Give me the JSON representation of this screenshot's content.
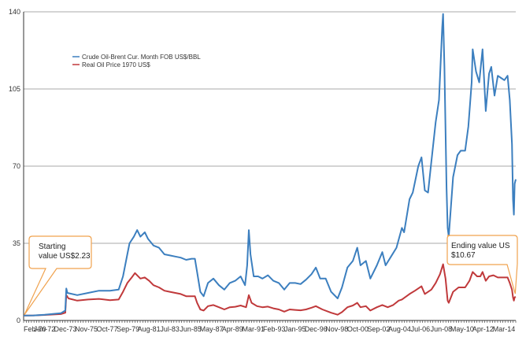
{
  "chart_data": {
    "type": "line",
    "title": "",
    "xlabel": "",
    "ylabel": "",
    "ylim": [
      0,
      140
    ],
    "yticks": [
      0,
      35,
      70,
      105,
      140
    ],
    "grid": "horizontal",
    "legend_position": "top-left",
    "x_tick_labels": [
      "Feb-70",
      "Jan-72",
      "Dec-73",
      "Nov-75",
      "Oct-77",
      "Sep-79",
      "Aug-81",
      "Jul-83",
      "Jun-85",
      "May-87",
      "Apr-89",
      "Mar-91",
      "Feb-93",
      "Jan-95",
      "Dec-96",
      "Nov-98",
      "Oct-00",
      "Sep-02",
      "Aug-04",
      "Jul-06",
      "Jun-08",
      "May-10",
      "Apr-12",
      "Mar-14"
    ],
    "x_start_year": 1970.08,
    "x_end_year": 2015.25,
    "series": [
      {
        "name": "Crude Oil-Brent Cur. Month FOB US$/BBL",
        "color": "#3c7fbf",
        "points": [
          [
            1970.08,
            2.23
          ],
          [
            1971.0,
            2.3
          ],
          [
            1972.0,
            2.6
          ],
          [
            1973.5,
            3.3
          ],
          [
            1973.9,
            4.5
          ],
          [
            1974.0,
            14.5
          ],
          [
            1974.1,
            12.5
          ],
          [
            1975.0,
            11.5
          ],
          [
            1976.0,
            12.5
          ],
          [
            1977.0,
            13.5
          ],
          [
            1978.0,
            13.5
          ],
          [
            1978.8,
            14.0
          ],
          [
            1979.2,
            20
          ],
          [
            1979.6,
            30
          ],
          [
            1979.8,
            35
          ],
          [
            1980.2,
            38
          ],
          [
            1980.5,
            41
          ],
          [
            1980.8,
            38
          ],
          [
            1981.2,
            40
          ],
          [
            1981.5,
            37
          ],
          [
            1982.0,
            34
          ],
          [
            1982.5,
            33
          ],
          [
            1983.0,
            30
          ],
          [
            1983.5,
            29.5
          ],
          [
            1984.0,
            29
          ],
          [
            1984.5,
            28.5
          ],
          [
            1985.0,
            27.5
          ],
          [
            1985.5,
            28
          ],
          [
            1985.8,
            28
          ],
          [
            1986.0,
            22
          ],
          [
            1986.3,
            13
          ],
          [
            1986.6,
            11
          ],
          [
            1987.0,
            17
          ],
          [
            1987.5,
            19
          ],
          [
            1988.0,
            16
          ],
          [
            1988.5,
            14
          ],
          [
            1989.0,
            17
          ],
          [
            1989.5,
            18
          ],
          [
            1990.0,
            20
          ],
          [
            1990.4,
            16
          ],
          [
            1990.6,
            25
          ],
          [
            1990.75,
            41
          ],
          [
            1990.9,
            30
          ],
          [
            1991.2,
            20
          ],
          [
            1991.6,
            20
          ],
          [
            1992.0,
            19
          ],
          [
            1992.5,
            20.5
          ],
          [
            1993.0,
            18
          ],
          [
            1993.5,
            17
          ],
          [
            1994.0,
            14
          ],
          [
            1994.5,
            17
          ],
          [
            1995.0,
            17
          ],
          [
            1995.5,
            16.5
          ],
          [
            1996.0,
            18.5
          ],
          [
            1996.5,
            21
          ],
          [
            1996.9,
            24
          ],
          [
            1997.3,
            19
          ],
          [
            1997.8,
            19
          ],
          [
            1998.3,
            13
          ],
          [
            1998.9,
            10
          ],
          [
            1999.3,
            15
          ],
          [
            1999.8,
            24
          ],
          [
            2000.3,
            27
          ],
          [
            2000.7,
            33
          ],
          [
            2001.0,
            25
          ],
          [
            2001.5,
            27
          ],
          [
            2001.9,
            19
          ],
          [
            2002.5,
            25
          ],
          [
            2003.0,
            31
          ],
          [
            2003.3,
            25
          ],
          [
            2003.8,
            29
          ],
          [
            2004.3,
            33
          ],
          [
            2004.8,
            42
          ],
          [
            2005.0,
            40
          ],
          [
            2005.5,
            55
          ],
          [
            2005.8,
            58
          ],
          [
            2006.3,
            70
          ],
          [
            2006.6,
            74
          ],
          [
            2006.9,
            59
          ],
          [
            2007.2,
            58
          ],
          [
            2007.5,
            72
          ],
          [
            2007.9,
            90
          ],
          [
            2008.2,
            100
          ],
          [
            2008.5,
            133
          ],
          [
            2008.58,
            139
          ],
          [
            2008.7,
            115
          ],
          [
            2008.9,
            60
          ],
          [
            2009.0,
            42
          ],
          [
            2009.1,
            38
          ],
          [
            2009.5,
            65
          ],
          [
            2009.9,
            75
          ],
          [
            2010.2,
            77
          ],
          [
            2010.6,
            77
          ],
          [
            2010.9,
            88
          ],
          [
            2011.2,
            108
          ],
          [
            2011.3,
            123
          ],
          [
            2011.6,
            113
          ],
          [
            2011.9,
            108
          ],
          [
            2012.2,
            123
          ],
          [
            2012.5,
            95
          ],
          [
            2012.8,
            112
          ],
          [
            2013.0,
            115
          ],
          [
            2013.3,
            102
          ],
          [
            2013.6,
            111
          ],
          [
            2013.9,
            110
          ],
          [
            2014.2,
            109
          ],
          [
            2014.5,
            111
          ],
          [
            2014.7,
            100
          ],
          [
            2014.9,
            80
          ],
          [
            2015.0,
            55
          ],
          [
            2015.08,
            48
          ],
          [
            2015.15,
            62
          ],
          [
            2015.25,
            64
          ]
        ]
      },
      {
        "name": "Real Oil Price 1970 US$",
        "color": "#c0393b",
        "points": [
          [
            1970.08,
            2.23
          ],
          [
            1971.0,
            2.3
          ],
          [
            1972.0,
            2.5
          ],
          [
            1973.5,
            2.9
          ],
          [
            1973.9,
            3.5
          ],
          [
            1974.0,
            11.5
          ],
          [
            1974.2,
            10
          ],
          [
            1975.0,
            9
          ],
          [
            1976.0,
            9.5
          ],
          [
            1977.0,
            9.8
          ],
          [
            1978.0,
            9.2
          ],
          [
            1978.8,
            9.5
          ],
          [
            1979.2,
            13
          ],
          [
            1979.6,
            17
          ],
          [
            1980.0,
            19.5
          ],
          [
            1980.3,
            21.5
          ],
          [
            1980.8,
            19
          ],
          [
            1981.2,
            19.5
          ],
          [
            1981.6,
            18
          ],
          [
            1982.0,
            16
          ],
          [
            1982.5,
            15
          ],
          [
            1983.0,
            13.5
          ],
          [
            1983.5,
            13
          ],
          [
            1984.0,
            12.5
          ],
          [
            1984.5,
            12
          ],
          [
            1985.0,
            11
          ],
          [
            1985.8,
            11
          ],
          [
            1986.0,
            8
          ],
          [
            1986.3,
            5
          ],
          [
            1986.6,
            4.5
          ],
          [
            1987.0,
            6.5
          ],
          [
            1987.5,
            7
          ],
          [
            1988.0,
            6
          ],
          [
            1988.5,
            5
          ],
          [
            1989.0,
            6
          ],
          [
            1989.5,
            6.2
          ],
          [
            1990.0,
            6.8
          ],
          [
            1990.5,
            6
          ],
          [
            1990.75,
            11.5
          ],
          [
            1991.0,
            8
          ],
          [
            1991.5,
            6.5
          ],
          [
            1992.0,
            6
          ],
          [
            1992.5,
            6.3
          ],
          [
            1993.0,
            5.5
          ],
          [
            1993.5,
            5
          ],
          [
            1994.0,
            4
          ],
          [
            1994.5,
            5
          ],
          [
            1995.0,
            4.8
          ],
          [
            1995.5,
            4.6
          ],
          [
            1996.0,
            5
          ],
          [
            1996.5,
            5.8
          ],
          [
            1996.9,
            6.5
          ],
          [
            1997.5,
            5
          ],
          [
            1998.3,
            3.5
          ],
          [
            1998.9,
            2.6
          ],
          [
            1999.3,
            3.8
          ],
          [
            1999.8,
            6
          ],
          [
            2000.3,
            6.8
          ],
          [
            2000.7,
            8
          ],
          [
            2001.0,
            6
          ],
          [
            2001.5,
            6.5
          ],
          [
            2001.9,
            4.5
          ],
          [
            2002.5,
            6
          ],
          [
            2003.0,
            7
          ],
          [
            2003.5,
            6
          ],
          [
            2004.0,
            7
          ],
          [
            2004.5,
            9
          ],
          [
            2004.8,
            9.5
          ],
          [
            2005.5,
            12
          ],
          [
            2006.0,
            13.5
          ],
          [
            2006.6,
            15.5
          ],
          [
            2006.9,
            12
          ],
          [
            2007.5,
            14
          ],
          [
            2007.9,
            17
          ],
          [
            2008.3,
            21
          ],
          [
            2008.58,
            25.5
          ],
          [
            2008.8,
            19
          ],
          [
            2009.0,
            9
          ],
          [
            2009.1,
            8
          ],
          [
            2009.5,
            13
          ],
          [
            2010.0,
            15
          ],
          [
            2010.6,
            15
          ],
          [
            2011.0,
            18
          ],
          [
            2011.3,
            22
          ],
          [
            2011.7,
            20
          ],
          [
            2012.0,
            20
          ],
          [
            2012.2,
            22
          ],
          [
            2012.5,
            18
          ],
          [
            2012.8,
            20
          ],
          [
            2013.2,
            20.5
          ],
          [
            2013.6,
            19.5
          ],
          [
            2014.0,
            19.5
          ],
          [
            2014.5,
            19.5
          ],
          [
            2014.7,
            17
          ],
          [
            2014.9,
            14
          ],
          [
            2015.0,
            10.5
          ],
          [
            2015.08,
            9
          ],
          [
            2015.15,
            10.5
          ],
          [
            2015.25,
            10.7
          ]
        ]
      }
    ],
    "annotations": [
      {
        "name": "starting-value",
        "lines": [
          "Starting",
          "value US$2.23"
        ],
        "x": 1970.08,
        "y": 2.23
      },
      {
        "name": "ending-value",
        "lines": [
          "Ending value US",
          "$10.67"
        ],
        "x": 2015.2,
        "y": 10.67
      }
    ]
  }
}
